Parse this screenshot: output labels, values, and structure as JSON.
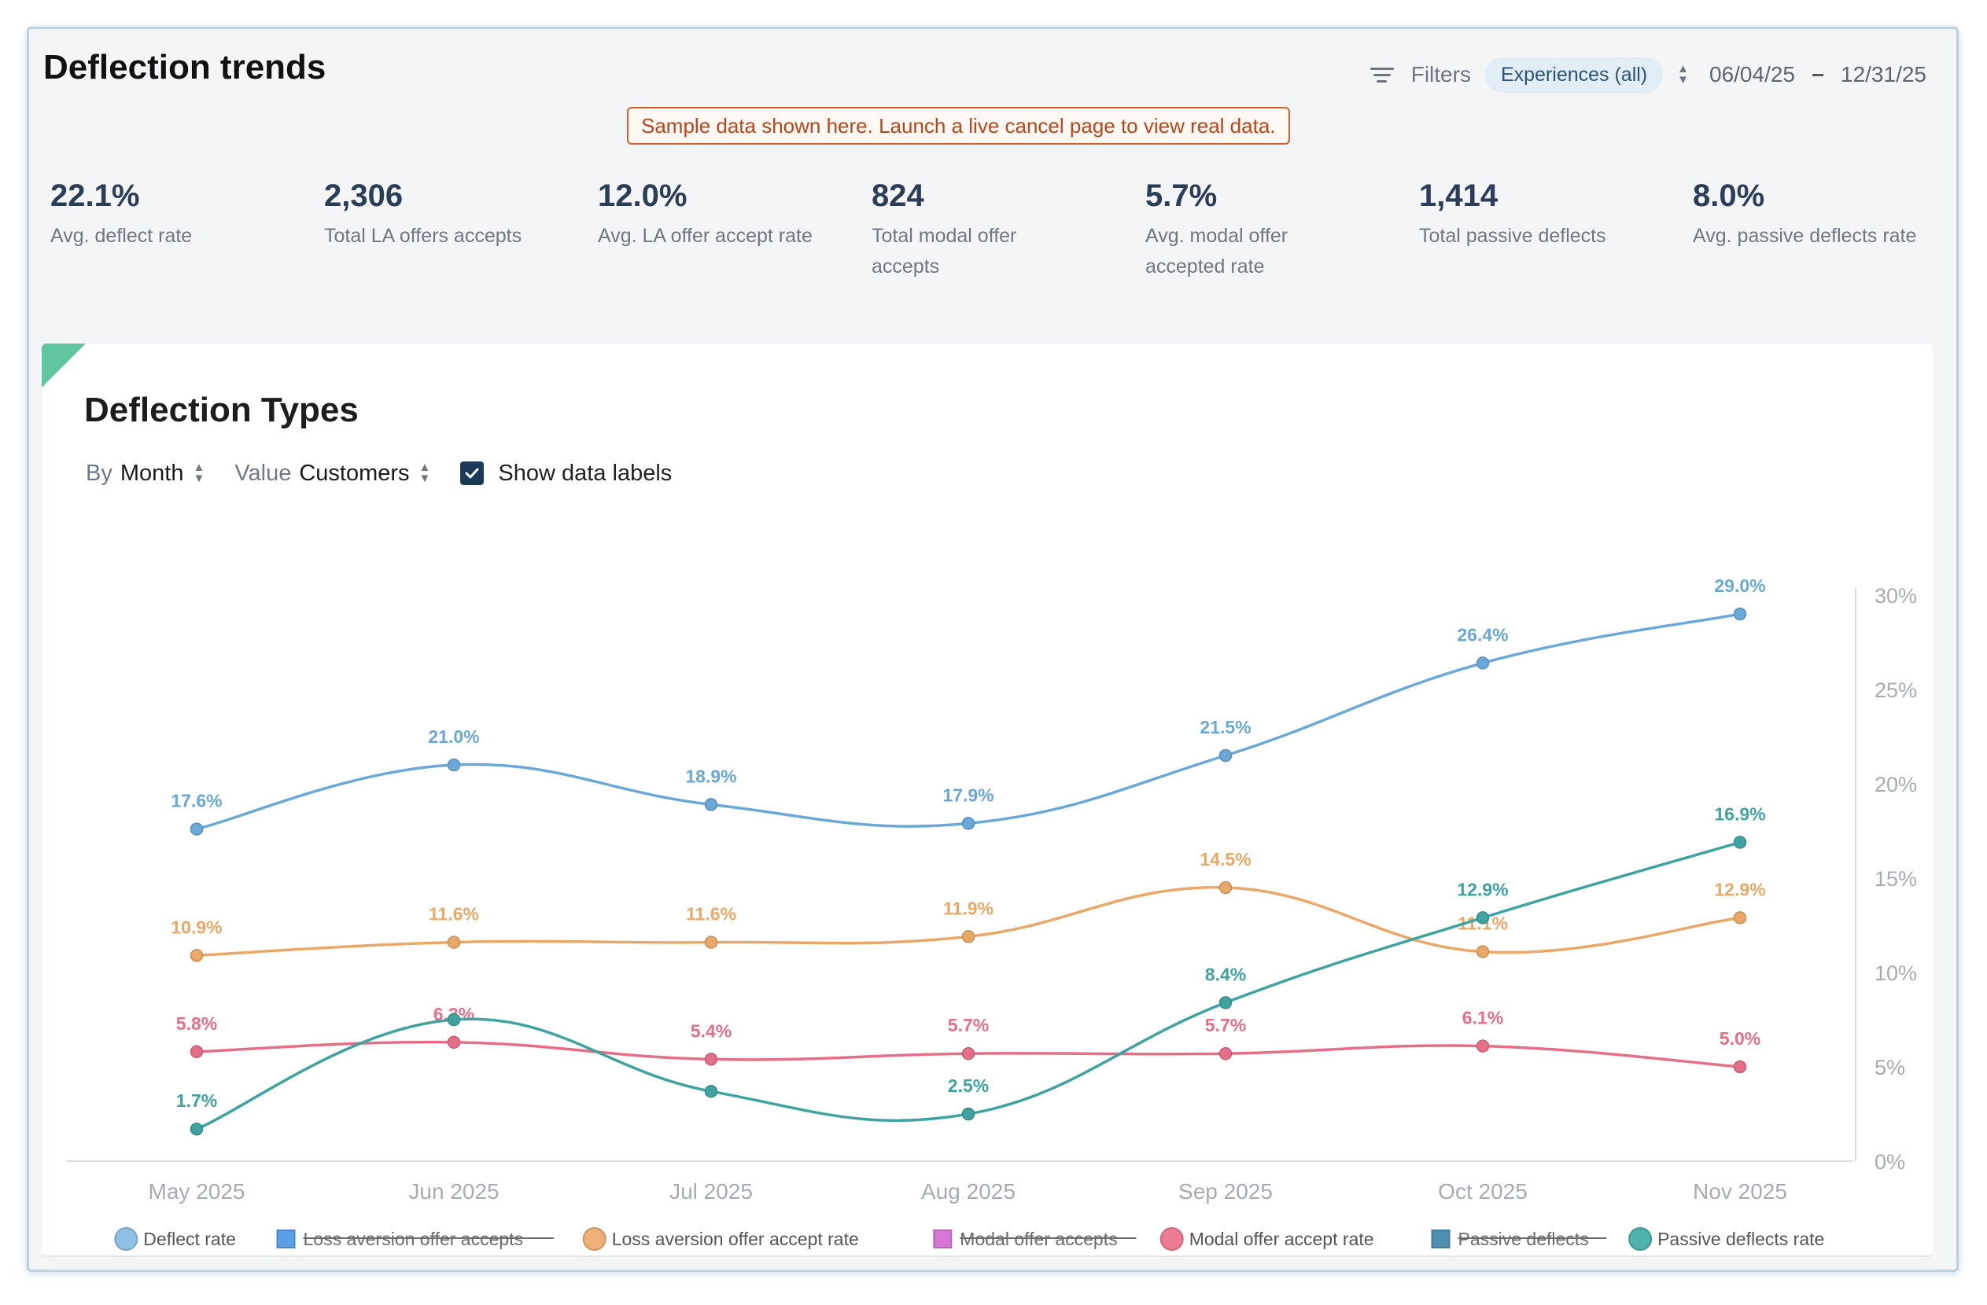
{
  "header": {
    "title": "Deflection trends",
    "filters_label": "Filters",
    "experience_filter": "Experiences (all)",
    "date_start": "06/04/25",
    "date_end": "12/31/25"
  },
  "banner": "Sample data shown here. Launch a live cancel page to view real data.",
  "stats": [
    {
      "value": "22.1%",
      "label": "Avg. deflect rate"
    },
    {
      "value": "2,306",
      "label": "Total LA offers accepts"
    },
    {
      "value": "12.0%",
      "label": "Avg. LA offer accept rate"
    },
    {
      "value": "824",
      "label": "Total modal offer accepts"
    },
    {
      "value": "5.7%",
      "label": "Avg. modal offer accepted rate"
    },
    {
      "value": "1,414",
      "label": "Total passive deflects"
    },
    {
      "value": "8.0%",
      "label": "Avg. passive deflects rate"
    }
  ],
  "chart_card": {
    "title": "Deflection Types",
    "by_label": "By",
    "by_value": "Month",
    "value_label": "Value",
    "value_value": "Customers",
    "show_labels_text": "Show data labels"
  },
  "chart_data": {
    "type": "line",
    "title": "Deflection Types",
    "categories": [
      "May 2025",
      "Jun 2025",
      "Jul 2025",
      "Aug 2025",
      "Sep 2025",
      "Oct 2025",
      "Nov 2025"
    ],
    "ylim": [
      0,
      30
    ],
    "y_ticks": [
      "0%",
      "5%",
      "10%",
      "15%",
      "20%",
      "25%",
      "30%"
    ],
    "y_axis_side": "right",
    "series": [
      {
        "name": "Deflect rate",
        "color": "#6aa8d8",
        "values": [
          17.6,
          21.0,
          18.9,
          17.9,
          21.5,
          26.4,
          29.0
        ],
        "labels": [
          "17.6%",
          "21.0%",
          "18.9%",
          "17.9%",
          "21.5%",
          "26.4%",
          "29.0%"
        ]
      },
      {
        "name": "Loss aversion offer accept rate",
        "color": "#e9a867",
        "values": [
          10.9,
          11.6,
          11.6,
          11.9,
          14.5,
          11.1,
          12.9
        ],
        "labels": [
          "10.9%",
          "11.6%",
          "11.6%",
          "11.9%",
          "14.5%",
          "11.1%",
          "12.9%"
        ]
      },
      {
        "name": "Modal offer accept rate",
        "color": "#e56f88",
        "values": [
          5.8,
          6.3,
          5.4,
          5.7,
          5.7,
          6.1,
          5.0
        ],
        "labels": [
          "5.8%",
          "6.3%",
          "5.4%",
          "5.7%",
          "5.7%",
          "6.1%",
          "5.0%"
        ]
      },
      {
        "name": "Passive deflects rate",
        "color": "#3fa3a0",
        "values": [
          1.7,
          7.5,
          3.7,
          2.5,
          8.4,
          12.9,
          16.9
        ],
        "labels": [
          "1.7%",
          "",
          "",
          "2.5%",
          "8.4%",
          "12.9%",
          "16.9%"
        ]
      }
    ],
    "legend": [
      {
        "name": "Deflect rate",
        "color": "#8fc0e6",
        "shape": "circle",
        "hidden": false
      },
      {
        "name": "Loss aversion offer accepts",
        "color": "#5b9fe6",
        "shape": "square",
        "hidden": true
      },
      {
        "name": "Loss aversion offer accept rate",
        "color": "#eeb077",
        "shape": "circle",
        "hidden": false
      },
      {
        "name": "Modal offer accepts",
        "color": "#d678d4",
        "shape": "square",
        "hidden": true
      },
      {
        "name": "Modal offer accept rate",
        "color": "#ee7b94",
        "shape": "circle",
        "hidden": false
      },
      {
        "name": "Passive deflects",
        "color": "#4f8fb2",
        "shape": "square",
        "hidden": true
      },
      {
        "name": "Passive deflects rate",
        "color": "#4db3ab",
        "shape": "circle",
        "hidden": false
      }
    ],
    "legend_position": "bottom",
    "grid": false
  }
}
